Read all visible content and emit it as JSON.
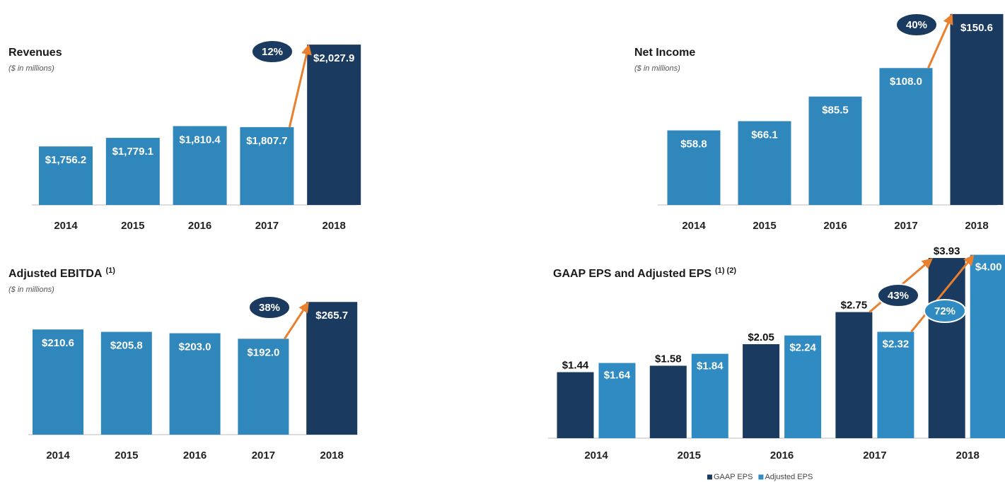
{
  "chart_data": [
    {
      "type": "bar",
      "title": "Revenues",
      "subtitle": "($ in millions)",
      "categories": [
        "2014",
        "2015",
        "2016",
        "2017",
        "2018"
      ],
      "values": [
        1756.2,
        1779.1,
        1810.4,
        1807.7,
        2027.9
      ],
      "value_labels": [
        "$1,756.2",
        "$1,779.1",
        "$1,810.4",
        "$1,807.7",
        "$2,027.9"
      ],
      "colors": [
        "#2f87bb",
        "#2f87bb",
        "#2f87bb",
        "#2f87bb",
        "#1b3a5f"
      ],
      "ylim": [
        1600,
        2030
      ],
      "annotations": [
        {
          "text": "12%",
          "color": "#1b3a5f"
        }
      ]
    },
    {
      "type": "bar",
      "title": "Net Income",
      "subtitle": "($ in millions)",
      "categories": [
        "2014",
        "2015",
        "2016",
        "2017",
        "2018"
      ],
      "values": [
        58.8,
        66.1,
        85.5,
        108.0,
        150.6
      ],
      "value_labels": [
        "$58.8",
        "$66.1",
        "$85.5",
        "$108.0",
        "$150.6"
      ],
      "colors": [
        "#2f87bb",
        "#2f87bb",
        "#2f87bb",
        "#2f87bb",
        "#1b3a5f"
      ],
      "ylim": [
        0,
        160
      ],
      "annotations": [
        {
          "text": "40%",
          "color": "#1b3a5f"
        }
      ]
    },
    {
      "type": "bar",
      "title": "Adjusted EBITDA",
      "title_note": "(1)",
      "subtitle": "($ in millions)",
      "categories": [
        "2014",
        "2015",
        "2016",
        "2017",
        "2018"
      ],
      "values": [
        210.6,
        205.8,
        203.0,
        192.0,
        265.7
      ],
      "value_labels": [
        "$210.6",
        "$205.8",
        "$203.0",
        "$192.0",
        "$265.7"
      ],
      "colors": [
        "#2f87bb",
        "#2f87bb",
        "#2f87bb",
        "#2f87bb",
        "#1b3a5f"
      ],
      "ylim": [
        0,
        300
      ],
      "annotations": [
        {
          "text": "38%",
          "color": "#1b3a5f"
        }
      ]
    },
    {
      "type": "grouped_bar",
      "title": "GAAP EPS and Adjusted EPS",
      "title_note": "(1) (2)",
      "categories": [
        "2014",
        "2015",
        "2016",
        "2017",
        "2018"
      ],
      "series": [
        {
          "name": "GAAP EPS",
          "color": "#1b3a5f",
          "values": [
            1.44,
            1.58,
            2.05,
            2.75,
            3.93
          ],
          "value_labels": [
            "$1.44",
            "$1.58",
            "$2.05",
            "$2.75",
            "$3.93"
          ]
        },
        {
          "name": "Adjusted EPS",
          "color": "#2f8bc2",
          "values": [
            1.64,
            1.84,
            2.24,
            2.32,
            4.0
          ],
          "value_labels": [
            "$1.64",
            "$1.84",
            "$2.24",
            "$2.32",
            "$4.00"
          ]
        }
      ],
      "ylim": [
        0,
        4.1
      ],
      "legend": "bottom",
      "annotations": [
        {
          "text": "43%",
          "color": "#1b3a5f"
        },
        {
          "text": "72%",
          "color": "#2f8bc2"
        }
      ]
    }
  ]
}
